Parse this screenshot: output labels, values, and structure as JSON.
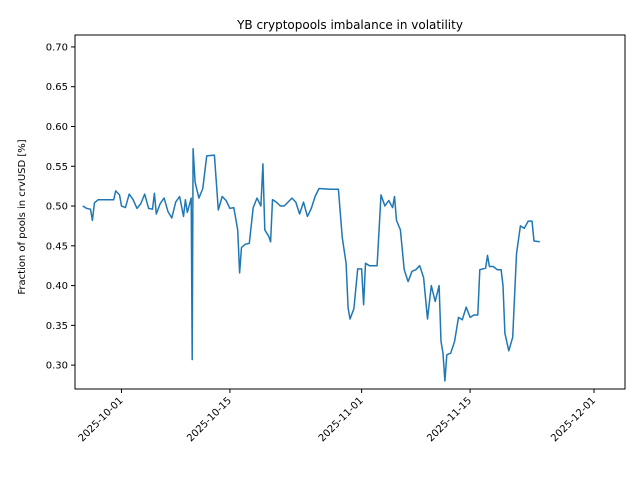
{
  "chart_data": {
    "type": "line",
    "title": "YB cryptopools imbalance in volatility",
    "xlabel": "",
    "ylabel": "Fraction of pools in crvUSD [%]",
    "grid": false,
    "legend": "none",
    "xlim": [
      "2025-09-25",
      "2025-12-05"
    ],
    "ylim": [
      0.27,
      0.715
    ],
    "x_ticks": [
      "2025-10-01",
      "2025-10-15",
      "2025-11-01",
      "2025-11-15",
      "2025-12-01"
    ],
    "y_ticks": [
      "0.30",
      "0.35",
      "0.40",
      "0.45",
      "0.50",
      "0.55",
      "0.60",
      "0.65",
      "0.70"
    ],
    "series": [
      {
        "color": "#1f77b4",
        "points": [
          [
            "2025-09-26T00:00",
            0.5
          ],
          [
            "2025-09-26T12:00",
            0.497
          ],
          [
            "2025-09-27T00:00",
            0.496
          ],
          [
            "2025-09-27T06:00",
            0.482
          ],
          [
            "2025-09-27T12:00",
            0.504
          ],
          [
            "2025-09-28T00:00",
            0.508
          ],
          [
            "2025-09-29T00:00",
            0.508
          ],
          [
            "2025-09-30T00:00",
            0.508
          ],
          [
            "2025-09-30T06:00",
            0.519
          ],
          [
            "2025-09-30T18:00",
            0.514
          ],
          [
            "2025-10-01T00:00",
            0.5
          ],
          [
            "2025-10-01T12:00",
            0.498
          ],
          [
            "2025-10-02T00:00",
            0.515
          ],
          [
            "2025-10-02T12:00",
            0.508
          ],
          [
            "2025-10-03T00:00",
            0.497
          ],
          [
            "2025-10-03T12:00",
            0.503
          ],
          [
            "2025-10-04T00:00",
            0.515
          ],
          [
            "2025-10-04T12:00",
            0.497
          ],
          [
            "2025-10-05T00:00",
            0.496
          ],
          [
            "2025-10-05T06:00",
            0.516
          ],
          [
            "2025-10-05T12:00",
            0.49
          ],
          [
            "2025-10-06T00:00",
            0.503
          ],
          [
            "2025-10-06T12:00",
            0.51
          ],
          [
            "2025-10-07T00:00",
            0.493
          ],
          [
            "2025-10-07T12:00",
            0.485
          ],
          [
            "2025-10-08T00:00",
            0.505
          ],
          [
            "2025-10-08T12:00",
            0.512
          ],
          [
            "2025-10-09T00:00",
            0.487
          ],
          [
            "2025-10-09T06:00",
            0.508
          ],
          [
            "2025-10-09T12:00",
            0.492
          ],
          [
            "2025-10-10T00:00",
            0.51
          ],
          [
            "2025-10-10T03:00",
            0.307
          ],
          [
            "2025-10-10T06:00",
            0.572
          ],
          [
            "2025-10-10T12:00",
            0.53
          ],
          [
            "2025-10-11T00:00",
            0.51
          ],
          [
            "2025-10-11T12:00",
            0.522
          ],
          [
            "2025-10-12T00:00",
            0.563
          ],
          [
            "2025-10-13T00:00",
            0.564
          ],
          [
            "2025-10-13T12:00",
            0.495
          ],
          [
            "2025-10-14T00:00",
            0.512
          ],
          [
            "2025-10-14T12:00",
            0.507
          ],
          [
            "2025-10-15T00:00",
            0.497
          ],
          [
            "2025-10-15T12:00",
            0.498
          ],
          [
            "2025-10-16T00:00",
            0.47
          ],
          [
            "2025-10-16T06:00",
            0.416
          ],
          [
            "2025-10-16T12:00",
            0.448
          ],
          [
            "2025-10-17T00:00",
            0.452
          ],
          [
            "2025-10-17T12:00",
            0.453
          ],
          [
            "2025-10-18T00:00",
            0.498
          ],
          [
            "2025-10-18T12:00",
            0.51
          ],
          [
            "2025-10-19T00:00",
            0.5
          ],
          [
            "2025-10-19T06:00",
            0.553
          ],
          [
            "2025-10-19T12:00",
            0.47
          ],
          [
            "2025-10-20T00:00",
            0.462
          ],
          [
            "2025-10-20T06:00",
            0.455
          ],
          [
            "2025-10-20T12:00",
            0.508
          ],
          [
            "2025-10-21T00:00",
            0.505
          ],
          [
            "2025-10-21T12:00",
            0.5
          ],
          [
            "2025-10-22T00:00",
            0.5
          ],
          [
            "2025-10-22T12:00",
            0.505
          ],
          [
            "2025-10-23T00:00",
            0.51
          ],
          [
            "2025-10-23T12:00",
            0.505
          ],
          [
            "2025-10-24T00:00",
            0.49
          ],
          [
            "2025-10-24T12:00",
            0.505
          ],
          [
            "2025-10-25T00:00",
            0.487
          ],
          [
            "2025-10-25T12:00",
            0.497
          ],
          [
            "2025-10-26T00:00",
            0.512
          ],
          [
            "2025-10-26T12:00",
            0.522
          ],
          [
            "2025-10-28T00:00",
            0.521
          ],
          [
            "2025-10-29T00:00",
            0.521
          ],
          [
            "2025-10-29T12:00",
            0.46
          ],
          [
            "2025-10-30T00:00",
            0.428
          ],
          [
            "2025-10-30T06:00",
            0.372
          ],
          [
            "2025-10-30T12:00",
            0.358
          ],
          [
            "2025-10-31T00:00",
            0.371
          ],
          [
            "2025-10-31T12:00",
            0.421
          ],
          [
            "2025-11-01T00:00",
            0.421
          ],
          [
            "2025-11-01T06:00",
            0.376
          ],
          [
            "2025-11-01T12:00",
            0.428
          ],
          [
            "2025-11-02T00:00",
            0.425
          ],
          [
            "2025-11-03T00:00",
            0.425
          ],
          [
            "2025-11-03T12:00",
            0.514
          ],
          [
            "2025-11-04T00:00",
            0.5
          ],
          [
            "2025-11-04T12:00",
            0.507
          ],
          [
            "2025-11-05T00:00",
            0.498
          ],
          [
            "2025-11-05T06:00",
            0.512
          ],
          [
            "2025-11-05T12:00",
            0.482
          ],
          [
            "2025-11-06T00:00",
            0.47
          ],
          [
            "2025-11-06T12:00",
            0.42
          ],
          [
            "2025-11-07T00:00",
            0.405
          ],
          [
            "2025-11-07T12:00",
            0.418
          ],
          [
            "2025-11-08T00:00",
            0.42
          ],
          [
            "2025-11-08T12:00",
            0.425
          ],
          [
            "2025-11-09T00:00",
            0.41
          ],
          [
            "2025-11-09T12:00",
            0.358
          ],
          [
            "2025-11-10T00:00",
            0.4
          ],
          [
            "2025-11-10T12:00",
            0.38
          ],
          [
            "2025-11-11T00:00",
            0.4
          ],
          [
            "2025-11-11T06:00",
            0.33
          ],
          [
            "2025-11-11T12:00",
            0.315
          ],
          [
            "2025-11-11T18:00",
            0.28
          ],
          [
            "2025-11-12T00:00",
            0.313
          ],
          [
            "2025-11-12T12:00",
            0.315
          ],
          [
            "2025-11-13T00:00",
            0.33
          ],
          [
            "2025-11-13T12:00",
            0.36
          ],
          [
            "2025-11-14T00:00",
            0.357
          ],
          [
            "2025-11-14T12:00",
            0.373
          ],
          [
            "2025-11-15T00:00",
            0.36
          ],
          [
            "2025-11-15T12:00",
            0.363
          ],
          [
            "2025-11-16T00:00",
            0.363
          ],
          [
            "2025-11-16T06:00",
            0.42
          ],
          [
            "2025-11-17T00:00",
            0.422
          ],
          [
            "2025-11-17T06:00",
            0.438
          ],
          [
            "2025-11-17T12:00",
            0.424
          ],
          [
            "2025-11-18T00:00",
            0.424
          ],
          [
            "2025-11-18T12:00",
            0.42
          ],
          [
            "2025-11-19T00:00",
            0.42
          ],
          [
            "2025-11-19T06:00",
            0.4
          ],
          [
            "2025-11-19T12:00",
            0.34
          ],
          [
            "2025-11-20T00:00",
            0.318
          ],
          [
            "2025-11-20T12:00",
            0.335
          ],
          [
            "2025-11-21T00:00",
            0.44
          ],
          [
            "2025-11-21T12:00",
            0.475
          ],
          [
            "2025-11-22T00:00",
            0.472
          ],
          [
            "2025-11-22T12:00",
            0.481
          ],
          [
            "2025-11-23T00:00",
            0.481
          ],
          [
            "2025-11-23T06:00",
            0.456
          ],
          [
            "2025-11-24T00:00",
            0.455
          ]
        ]
      }
    ]
  }
}
